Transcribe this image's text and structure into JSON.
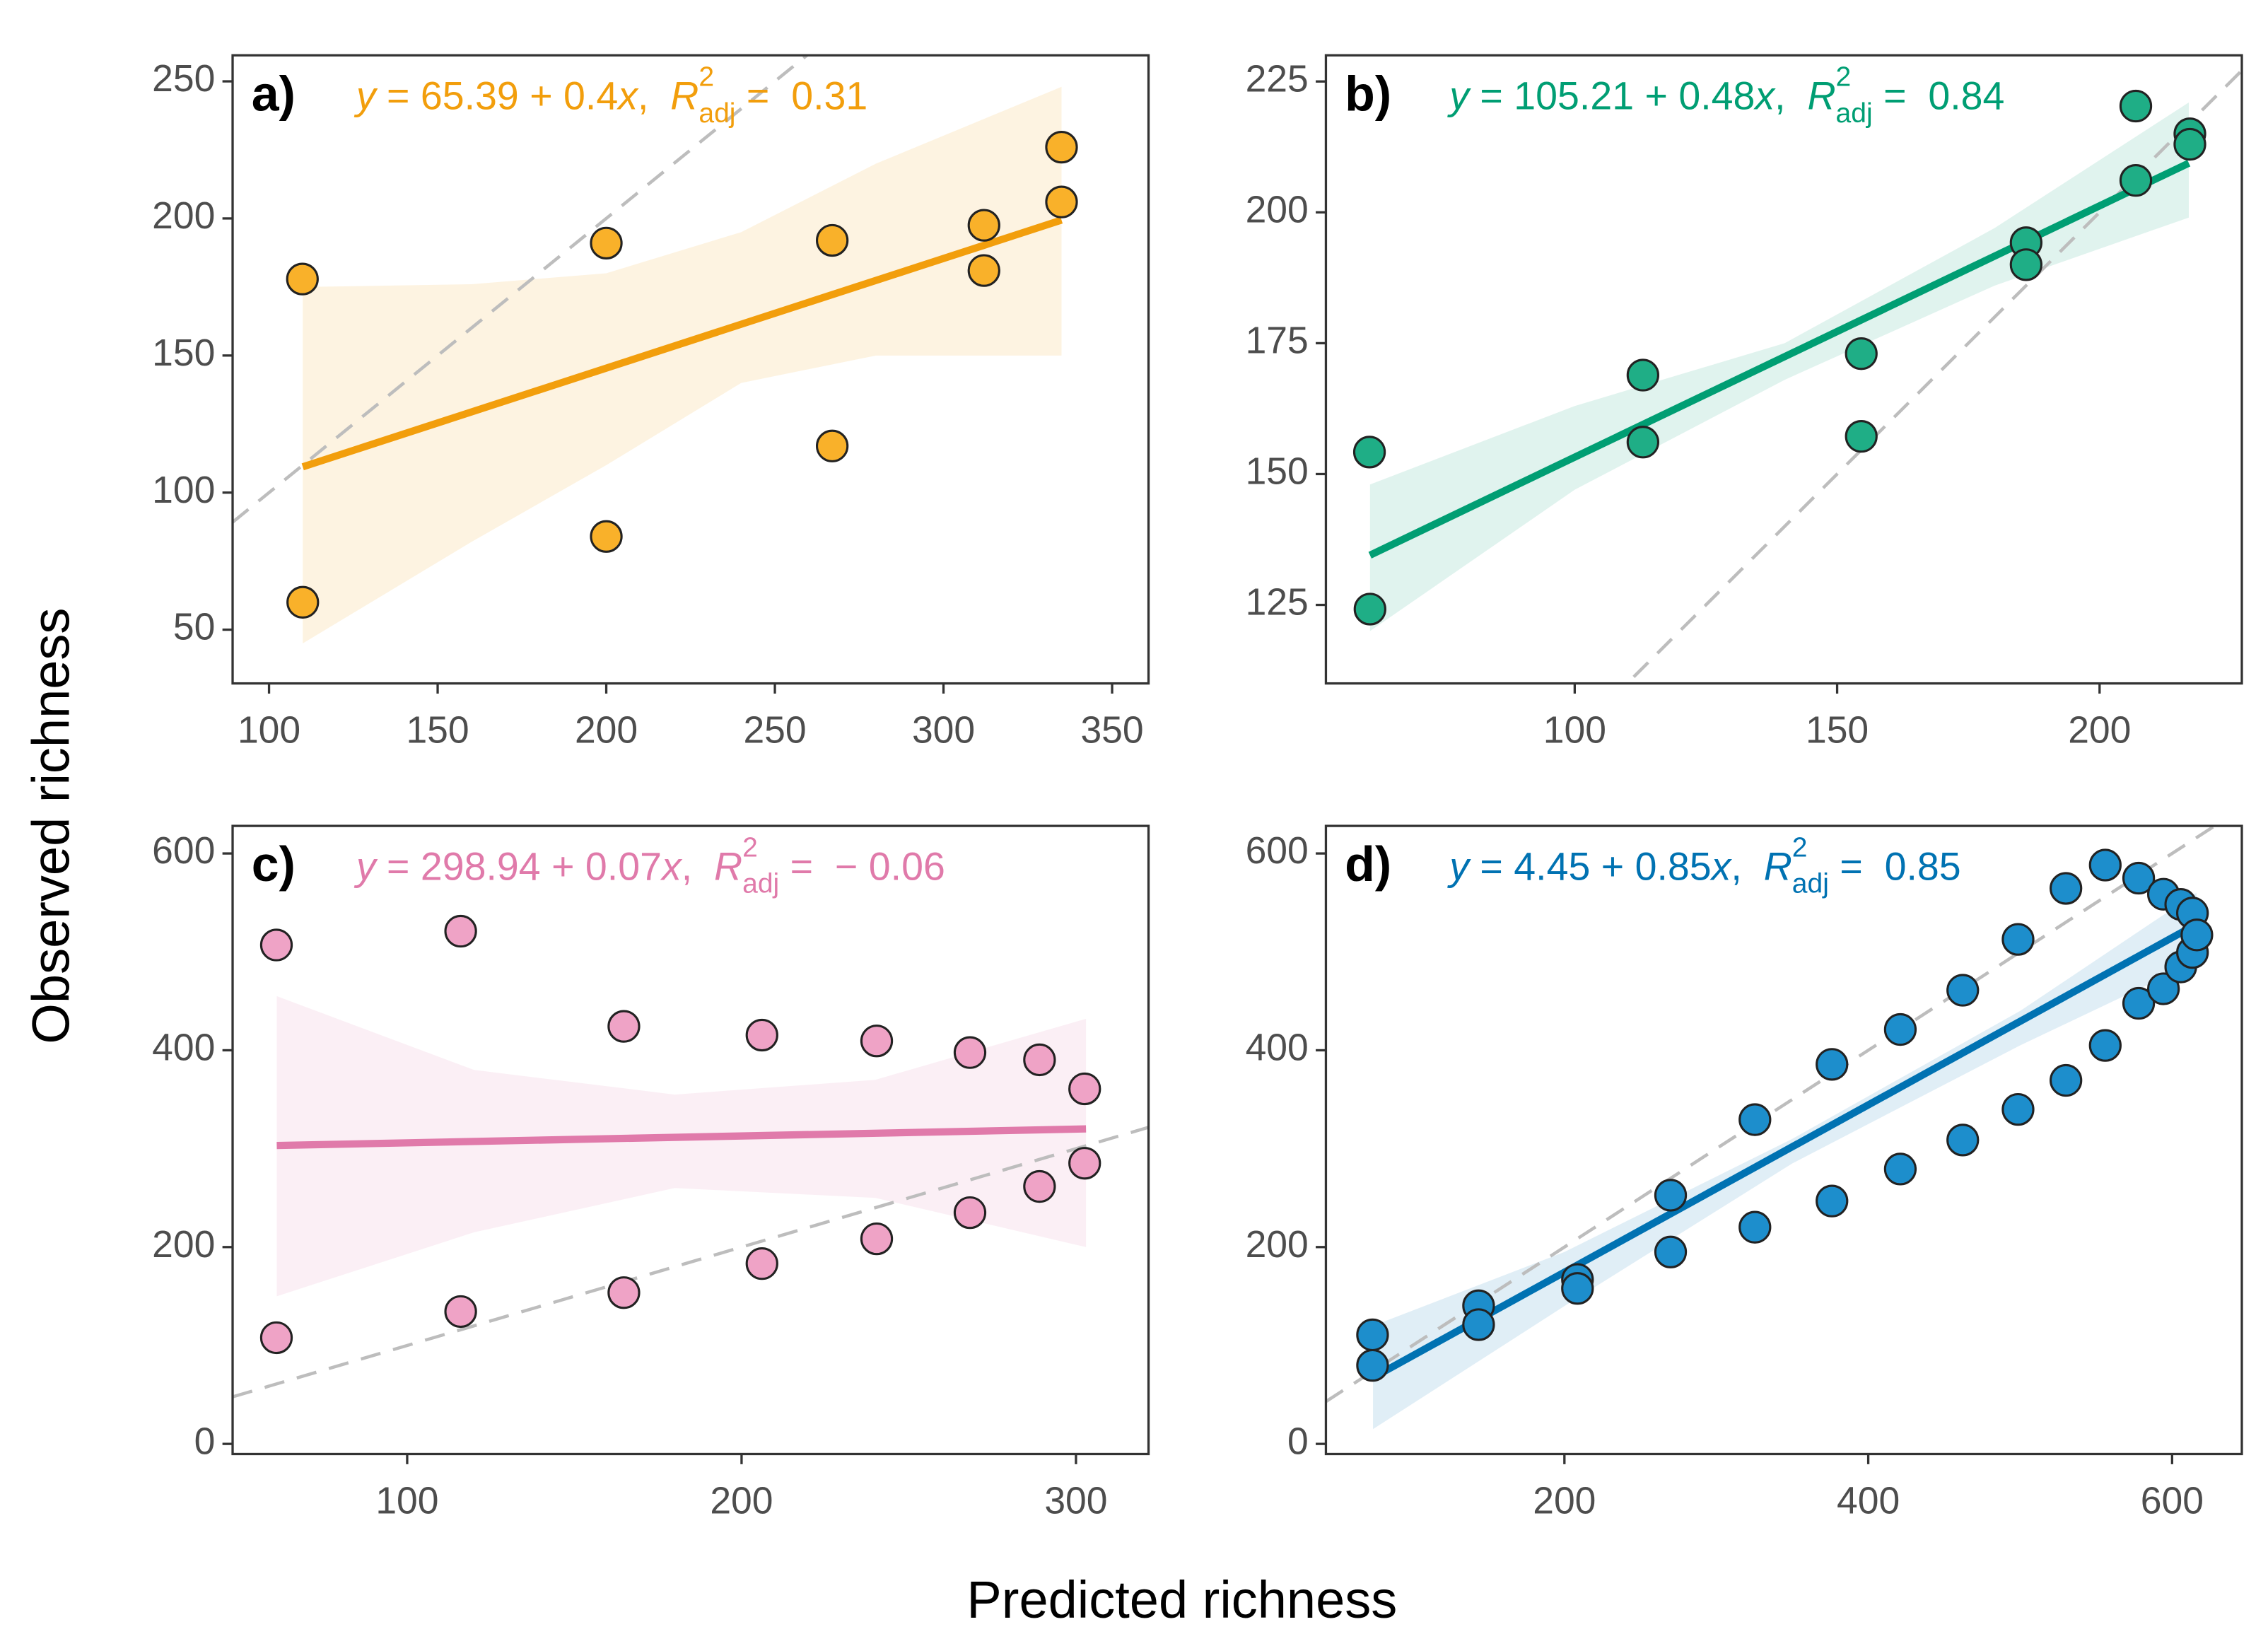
{
  "x_label": "Predicted richness",
  "y_label": "Observed richness",
  "chart_data": [
    {
      "type": "scatter",
      "title": "a)",
      "equation": [
        {
          "text": "y",
          "style": "italic"
        },
        {
          "text": " = 65.39 + 0.4"
        },
        {
          "text": "x",
          "style": "italic"
        },
        {
          "text": ",  "
        },
        {
          "text": "R",
          "style": "italic"
        },
        {
          "text": "2",
          "style": "sup"
        },
        {
          "text": "adj",
          "style": "sub"
        },
        {
          "text": " =  0.31"
        }
      ],
      "color": "#f29e0c",
      "point_color": "#f9b12a",
      "x": [
        109.9,
        110,
        200,
        200,
        267,
        267,
        312,
        312,
        335,
        335
      ],
      "y": [
        177.9,
        60,
        191,
        84,
        192,
        117,
        197.5,
        181,
        226,
        206
      ],
      "fit": {
        "x": [
          110,
          335
        ],
        "y": [
          109.4,
          199.4
        ]
      },
      "ci": {
        "x": [
          110,
          160,
          200,
          240,
          280,
          335
        ],
        "lower": [
          45,
          82,
          110,
          140,
          150,
          150
        ],
        "upper": [
          175,
          176,
          180,
          195,
          220,
          248
        ]
      },
      "xlim": [
        89.2,
        360.8
      ],
      "ylim": [
        30.4,
        259.5
      ],
      "xticks": [
        100,
        150,
        200,
        250,
        300,
        350
      ],
      "yticks": [
        50,
        100,
        150,
        200,
        250
      ]
    },
    {
      "type": "scatter",
      "title": "b)",
      "equation": [
        {
          "text": "y",
          "style": "italic"
        },
        {
          "text": " = 105.21 + 0.48"
        },
        {
          "text": "x",
          "style": "italic"
        },
        {
          "text": ",  "
        },
        {
          "text": "R",
          "style": "italic"
        },
        {
          "text": "2",
          "style": "sup"
        },
        {
          "text": "adj",
          "style": "sub"
        },
        {
          "text": " =  0.84"
        }
      ],
      "color": "#009e73",
      "point_color": "#1fae86",
      "x": [
        60.9,
        61,
        113,
        113,
        154.6,
        154.6,
        186,
        186,
        206.9,
        206.9,
        217.2,
        217.2
      ],
      "y": [
        154.2,
        124.2,
        168.9,
        156.1,
        173,
        157.2,
        194.2,
        190,
        220.3,
        206.1,
        215,
        213
      ],
      "fit": {
        "x": [
          61,
          217
        ],
        "y": [
          134.5,
          209.4
        ]
      },
      "ci": {
        "x": [
          61,
          100,
          140,
          180,
          217
        ],
        "lower": [
          120,
          147,
          168,
          186,
          199
        ],
        "upper": [
          148,
          163,
          175,
          197,
          221
        ]
      },
      "xlim": [
        52.6,
        227.1
      ],
      "ylim": [
        110,
        230
      ],
      "xticks": [
        100,
        150,
        200
      ],
      "yticks": [
        125,
        150,
        175,
        200,
        225
      ]
    },
    {
      "type": "scatter",
      "title": "c)",
      "equation": [
        {
          "text": "y",
          "style": "italic"
        },
        {
          "text": " = 298.94 + 0.07"
        },
        {
          "text": "x",
          "style": "italic"
        },
        {
          "text": ",  "
        },
        {
          "text": "R",
          "style": "italic"
        },
        {
          "text": "2",
          "style": "sup"
        },
        {
          "text": "adj",
          "style": "sub"
        },
        {
          "text": " =  − 0.06"
        }
      ],
      "color": "#e07aaa",
      "point_color": "#efa3c6",
      "x": [
        60.9,
        116,
        164.8,
        206.1,
        240.4,
        268.3,
        289.1,
        302.6,
        60.9,
        116,
        164.8,
        206.1,
        240.4,
        268.3,
        289.1,
        302.6
      ],
      "y": [
        507,
        521,
        424.3,
        415.4,
        409.5,
        397.7,
        390.3,
        360.8,
        107.9,
        134.5,
        153.7,
        183.2,
        208.4,
        235,
        261.6,
        285.2
      ],
      "fit": {
        "x": [
          61,
          303
        ],
        "y": [
          303.2,
          320.1
        ]
      },
      "ci": {
        "x": [
          61,
          120,
          180,
          240,
          303
        ],
        "lower": [
          150,
          215,
          260,
          250,
          200
        ],
        "upper": [
          455,
          380,
          355,
          370,
          432
        ]
      },
      "xlim": [
        47.8,
        321.7
      ],
      "ylim": [
        -10.3,
        628
      ],
      "xticks": [
        100,
        200,
        300
      ],
      "yticks": [
        0,
        200,
        400,
        600
      ]
    },
    {
      "type": "scatter",
      "title": "d)",
      "equation": [
        {
          "text": "y",
          "style": "italic"
        },
        {
          "text": " = 4.45 + 0.85"
        },
        {
          "text": "x",
          "style": "italic"
        },
        {
          "text": ",  "
        },
        {
          "text": "R",
          "style": "italic"
        },
        {
          "text": "2",
          "style": "sup"
        },
        {
          "text": "adj",
          "style": "sub"
        },
        {
          "text": " =  0.85"
        }
      ],
      "color": "#0072b2",
      "point_color": "#1d8ecc",
      "x": [
        73.7,
        73.7,
        143.5,
        143.5,
        208.6,
        208.6,
        269.9,
        269.9,
        325.4,
        325.4,
        376.1,
        376.1,
        421.1,
        421.1,
        462.2,
        462.2,
        498.6,
        498.6,
        530.1,
        530.1,
        556,
        556,
        578,
        578,
        594.3,
        594.3,
        605.7,
        605.7,
        613.4,
        613.4,
        616.3
      ],
      "y": [
        110.8,
        79.8,
        140.4,
        121.2,
        167,
        158,
        252.7,
        195,
        329.5,
        220.2,
        385.7,
        246.8,
        421.1,
        279.3,
        461,
        308.8,
        512.7,
        339.9,
        564.5,
        369.4,
        588.2,
        404.9,
        574.9,
        447.7,
        558.6,
        462.5,
        548.2,
        484.7,
        539.4,
        499.4,
        517.2
      ],
      "fit": {
        "x": [
          74,
          616
        ],
        "y": [
          67.4,
          528
        ]
      },
      "ci": {
        "x": [
          74,
          200,
          350,
          500,
          616
        ],
        "lower": [
          15,
          140,
          285,
          405,
          490
        ],
        "upper": [
          120,
          195,
          310,
          440,
          560
        ]
      },
      "xlim": [
        43,
        645.9
      ],
      "ylim": [
        -10.3,
        628
      ],
      "xticks": [
        200,
        400,
        600
      ],
      "yticks": [
        0,
        200,
        400,
        600
      ]
    }
  ]
}
